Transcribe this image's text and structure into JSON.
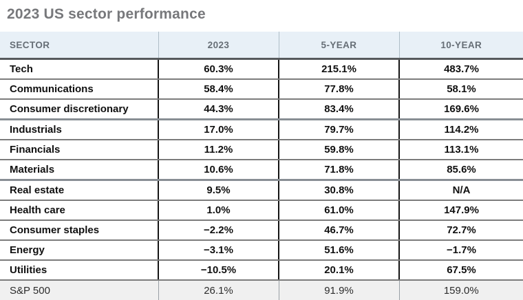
{
  "page_title": "2023 US sector performance",
  "chart_data": {
    "type": "table",
    "title": "2023 US sector performance",
    "columns": [
      "SECTOR",
      "2023",
      "5-YEAR",
      "10-YEAR"
    ],
    "rows": [
      [
        "Tech",
        "60.3%",
        "215.1%",
        "483.7%"
      ],
      [
        "Communications",
        "58.4%",
        "77.8%",
        "58.1%"
      ],
      [
        "Consumer discretionary",
        "44.3%",
        "83.4%",
        "169.6%"
      ],
      [
        "Industrials",
        "17.0%",
        "79.7%",
        "114.2%"
      ],
      [
        "Financials",
        "11.2%",
        "59.8%",
        "113.1%"
      ],
      [
        "Materials",
        "10.6%",
        "71.8%",
        "85.6%"
      ],
      [
        "Real estate",
        "9.5%",
        "30.8%",
        "N/A"
      ],
      [
        "Health care",
        "1.0%",
        "61.0%",
        "147.9%"
      ],
      [
        "Consumer staples",
        "−2.2%",
        "46.7%",
        "72.7%"
      ],
      [
        "Energy",
        "−3.1%",
        "51.6%",
        "−1.7%"
      ],
      [
        "Utilities",
        "−10.5%",
        "20.1%",
        "67.5%"
      ]
    ],
    "footer": [
      "S&P 500",
      "26.1%",
      "91.9%",
      "159.0%"
    ],
    "group_separators_after": [
      "Consumer discretionary",
      "Materials"
    ],
    "layout": {
      "value_alignment": "center",
      "grid": "horizontal-rules-with-column-dividers",
      "legend": "none"
    }
  },
  "colors": {
    "title_color": "#77787b",
    "header_bg": "#e8f0f7",
    "header_text": "#666e76",
    "header_border": "#56595c",
    "row_border": "#7b7b7b",
    "group_border": "#888e94",
    "footer_bg": "#f0f0f0"
  }
}
